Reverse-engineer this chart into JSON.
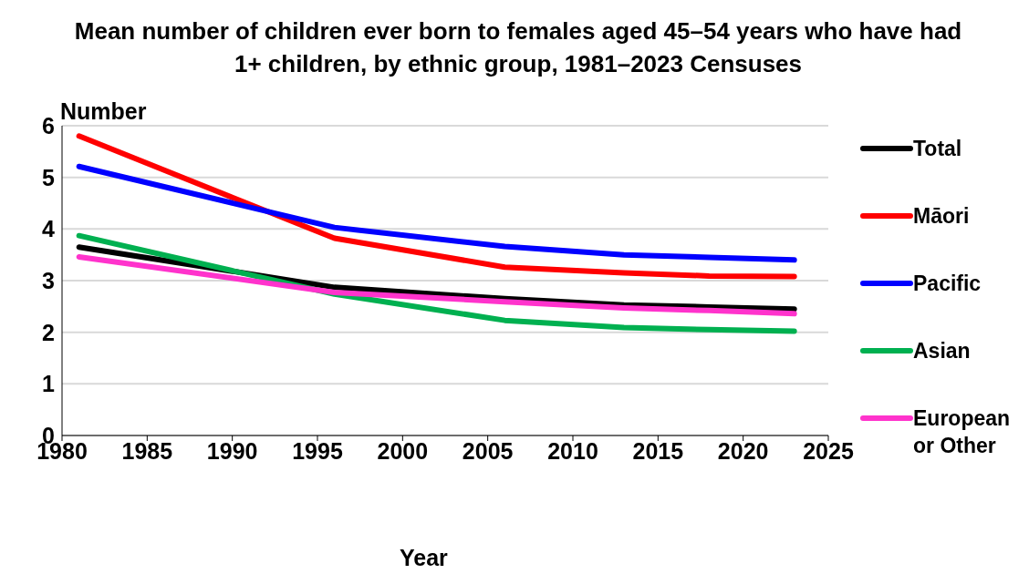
{
  "chart_data": {
    "type": "line",
    "title": "Mean number of children ever born to females aged 45–54 years who have had 1+ children, by ethnic group, 1981–2023 Censuses",
    "xlabel": "Year",
    "ylabel": "Number",
    "x": [
      1981,
      1996,
      2006,
      2013,
      2018,
      2023
    ],
    "series": [
      {
        "name": "Total",
        "color": "#000000",
        "values": [
          3.65,
          2.87,
          2.65,
          2.53,
          2.49,
          2.45
        ]
      },
      {
        "name": "Māori",
        "color": "#ff0000",
        "values": [
          5.8,
          3.82,
          3.26,
          3.15,
          3.09,
          3.08
        ]
      },
      {
        "name": "Pacific",
        "color": "#0000ff",
        "values": [
          5.21,
          4.03,
          3.66,
          3.5,
          3.45,
          3.4
        ]
      },
      {
        "name": "Asian",
        "color": "#00b050",
        "values": [
          3.87,
          2.74,
          2.23,
          2.09,
          2.05,
          2.02
        ]
      },
      {
        "name": "European or Other",
        "color": "#ff33cc",
        "values": [
          3.46,
          2.77,
          2.59,
          2.47,
          2.42,
          2.36
        ]
      }
    ],
    "xlim": [
      1980,
      2025
    ],
    "xticks": [
      1980,
      1985,
      1990,
      1995,
      2000,
      2005,
      2010,
      2015,
      2020,
      2025
    ],
    "ylim": [
      0,
      6
    ],
    "yticks": [
      0,
      1,
      2,
      3,
      4,
      5,
      6
    ],
    "grid": "y",
    "legend": "right",
    "marker": "none",
    "line_style": "solid"
  }
}
